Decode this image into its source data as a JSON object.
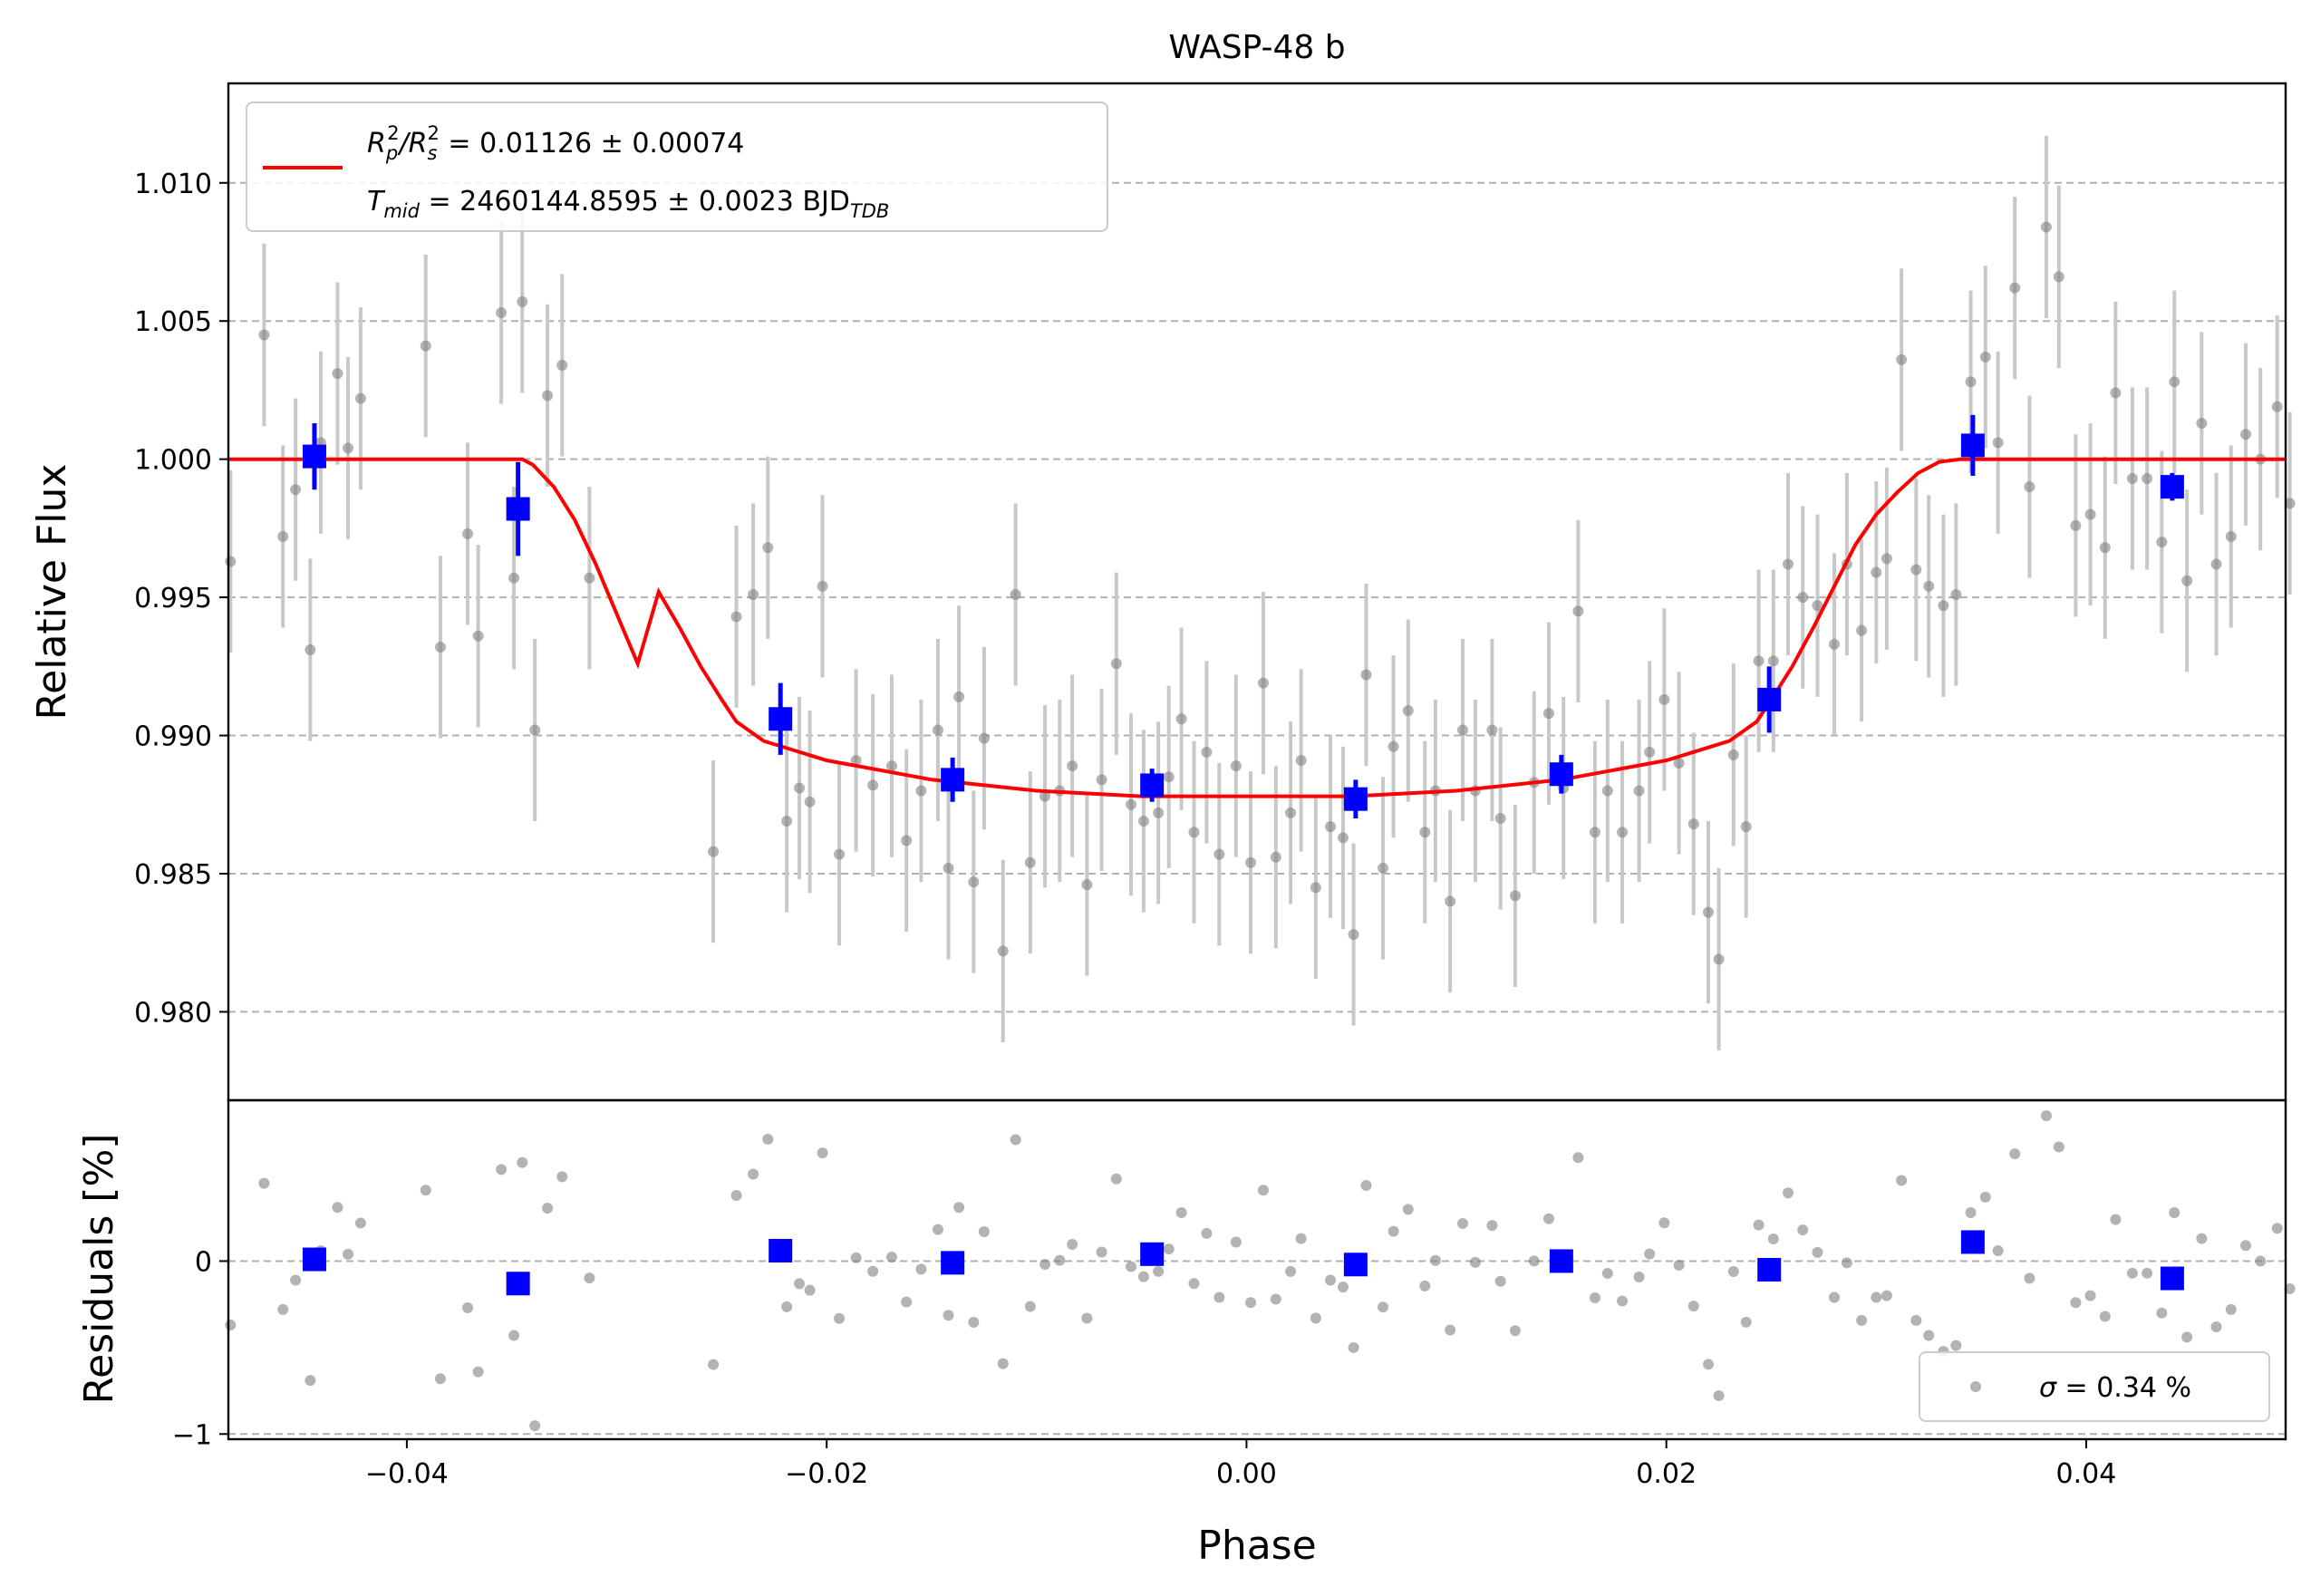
{
  "chart_data": [
    {
      "type": "scatter",
      "title": "WASP-48 b",
      "xlabel": "",
      "ylabel": "Relative Flux",
      "xlim": [
        -0.0485,
        0.0495
      ],
      "ylim": [
        0.9768,
        1.0136
      ],
      "y_ticks": [
        0.98,
        0.985,
        0.99,
        0.995,
        1.0,
        1.005,
        1.01
      ],
      "y_tick_labels": [
        "0.980",
        "0.985",
        "0.990",
        "0.995",
        "1.000",
        "1.005",
        "1.010"
      ],
      "grid": "y-dashed",
      "legend": {
        "placement": "top-left",
        "line1_prefix": "R",
        "line1_sub1": "p",
        "line1_sup1": "2",
        "line1_slash": "/R",
        "line1_sub2": "s",
        "line1_sup2": "2",
        "line1_value": " = 0.01126 ± 0.00074",
        "line2_prefix": "T",
        "line2_sub": "mid",
        "line2_value": " = 2460144.8595 ± 0.0023 BJD",
        "line2_unit_sub": "TDB"
      },
      "colors": {
        "raw": "#808080",
        "errorbar": "#c8c8c8",
        "binned": "#0000ff",
        "model": "#ff0000"
      },
      "series": [
        {
          "role": "raw",
          "x": [
            -0.0484,
            -0.0468,
            -0.0459,
            -0.0453,
            -0.0446,
            -0.0441,
            -0.0433,
            -0.0428,
            -0.0422,
            -0.0391,
            -0.0384,
            -0.0371,
            -0.0366,
            -0.0355,
            -0.0349,
            -0.0345,
            -0.0339,
            -0.0333,
            -0.0326,
            -0.0313,
            -0.0254,
            -0.0243,
            -0.0235,
            -0.0228,
            -0.0219,
            -0.0213,
            -0.0208,
            -0.0202,
            -0.0194,
            -0.0186,
            -0.0178,
            -0.0169,
            -0.0162,
            -0.0155,
            -0.0147,
            -0.0142,
            -0.0137,
            -0.013,
            -0.0125,
            -0.0116,
            -0.011,
            -0.0103,
            -0.0096,
            -0.0089,
            -0.0083,
            -0.0076,
            -0.0069,
            -0.0062,
            -0.0055,
            -0.0049,
            -0.0042,
            -0.0037,
            -0.0031,
            -0.0025,
            -0.0019,
            -0.0013,
            -0.0005,
            0.0002,
            0.0008,
            0.0014,
            0.0021,
            0.0026,
            0.0033,
            0.004,
            0.0046,
            0.0051,
            0.0057,
            0.0065,
            0.007,
            0.0077,
            0.0085,
            0.009,
            0.0097,
            0.0103,
            0.0109,
            0.0117,
            0.0121,
            0.0128,
            0.0137,
            0.0144,
            0.0151,
            0.0158,
            0.0166,
            0.0172,
            0.0179,
            0.0187,
            0.0192,
            0.0199,
            0.0206,
            0.0213,
            0.022,
            0.0225,
            0.0232,
            0.0238,
            0.0244,
            0.0251,
            0.0258,
            0.0265,
            0.0272,
            0.028,
            0.0286,
            0.0293,
            0.03,
            0.0305,
            0.0312,
            0.0319,
            0.0325,
            0.0332,
            0.0338,
            0.0345,
            0.0352,
            0.0358,
            0.0366,
            0.0373,
            0.0381,
            0.0387,
            0.0395,
            0.0402,
            0.0409,
            0.0414,
            0.0422,
            0.0429,
            0.0436,
            0.0442,
            0.0448,
            0.0455,
            0.0462,
            0.0469,
            0.0476,
            0.0483,
            0.0491,
            0.0497
          ],
          "y": [
            0.9963,
            1.0045,
            0.9972,
            0.9989,
            0.9931,
            1.0006,
            1.0031,
            1.0004,
            1.0022,
            1.0041,
            0.9932,
            0.9973,
            0.9936,
            1.0053,
            0.9957,
            1.0057,
            0.9902,
            1.0023,
            1.0034,
            0.9957,
            0.9858,
            0.9943,
            0.9951,
            0.9968,
            0.9869,
            0.9881,
            0.9876,
            0.9954,
            0.9857,
            0.9891,
            0.9882,
            0.9889,
            0.9862,
            0.988,
            0.9902,
            0.9852,
            0.9914,
            0.9847,
            0.9899,
            0.9822,
            0.9951,
            0.9854,
            0.9878,
            0.988,
            0.9889,
            0.9846,
            0.9884,
            0.9926,
            0.9875,
            0.9869,
            0.9872,
            0.9885,
            0.9906,
            0.9865,
            0.9894,
            0.9857,
            0.9889,
            0.9854,
            0.9919,
            0.9856,
            0.9872,
            0.9891,
            0.9845,
            0.9867,
            0.9863,
            0.9828,
            0.9922,
            0.9852,
            0.9896,
            0.9909,
            0.9865,
            0.988,
            0.984,
            0.9902,
            0.988,
            0.9902,
            0.987,
            0.9842,
            0.9883,
            0.9908,
            0.9881,
            0.9945,
            0.9865,
            0.988,
            0.9865,
            0.988,
            0.9894,
            0.9913,
            0.989,
            0.9868,
            0.9836,
            0.9819,
            0.9893,
            0.9867,
            0.9927,
            0.9927,
            0.9962,
            0.995,
            0.9947,
            0.9933,
            0.9962,
            0.9938,
            0.9959,
            0.9964,
            1.0036,
            0.996,
            0.9954,
            0.9947,
            0.9951,
            1.0028,
            1.0037,
            1.0006,
            1.0062,
            0.999,
            1.0084,
            1.0066,
            0.9976,
            0.998,
            0.9968,
            1.0024,
            0.9993,
            0.9993,
            0.997,
            1.0028,
            0.9956,
            1.0013,
            0.9962,
            0.9972,
            1.0009,
            1.0,
            1.0019,
            0.9984
          ],
          "yerr": [
            0.0033,
            0.0033,
            0.0033,
            0.0033,
            0.0033,
            0.0033,
            0.0033,
            0.0033,
            0.0033,
            0.0033,
            0.0033,
            0.0033,
            0.0033,
            0.0033,
            0.0033,
            0.0033,
            0.0033,
            0.0033,
            0.0033,
            0.0033,
            0.0033,
            0.0033,
            0.0033,
            0.0033,
            0.0033,
            0.0033,
            0.0033,
            0.0033,
            0.0033,
            0.0033,
            0.0033,
            0.0033,
            0.0033,
            0.0033,
            0.0033,
            0.0033,
            0.0033,
            0.0033,
            0.0033,
            0.0033,
            0.0033,
            0.0033,
            0.0033,
            0.0033,
            0.0033,
            0.0033,
            0.0033,
            0.0033,
            0.0033,
            0.0033,
            0.0033,
            0.0033,
            0.0033,
            0.0033,
            0.0033,
            0.0033,
            0.0033,
            0.0033,
            0.0033,
            0.0033,
            0.0033,
            0.0033,
            0.0033,
            0.0033,
            0.0033,
            0.0033,
            0.0033,
            0.0033,
            0.0033,
            0.0033,
            0.0033,
            0.0033,
            0.0033,
            0.0033,
            0.0033,
            0.0033,
            0.0033,
            0.0033,
            0.0033,
            0.0033,
            0.0033,
            0.0033,
            0.0033,
            0.0033,
            0.0033,
            0.0033,
            0.0033,
            0.0033,
            0.0033,
            0.0033,
            0.0033,
            0.0033,
            0.0033,
            0.0033,
            0.0033,
            0.0033,
            0.0033,
            0.0033,
            0.0033,
            0.0033,
            0.0033,
            0.0033,
            0.0033,
            0.0033,
            0.0033,
            0.0033,
            0.0033,
            0.0033,
            0.0033,
            0.0033,
            0.0033,
            0.0033,
            0.0033,
            0.0033,
            0.0033,
            0.0033,
            0.0033,
            0.0033,
            0.0033,
            0.0033,
            0.0033,
            0.0033,
            0.0033,
            0.0033,
            0.0033,
            0.0033,
            0.0033,
            0.0033,
            0.0033,
            0.0033,
            0.0033,
            0.0033
          ]
        },
        {
          "role": "binned",
          "x": [
            -0.0444,
            -0.0347,
            -0.0222,
            -0.014,
            -0.0045,
            0.0052,
            0.015,
            0.0249,
            0.0346,
            0.0441
          ],
          "y": [
            1.0001,
            0.9982,
            0.9906,
            0.9884,
            0.9882,
            0.9877,
            0.9886,
            0.9913,
            1.0005,
            0.999
          ],
          "yerr": [
            0.0012,
            0.0017,
            0.0013,
            0.0008,
            0.0006,
            0.0007,
            0.0007,
            0.0012,
            0.0011,
            0.0005
          ]
        },
        {
          "role": "model",
          "x": [
            -0.0485,
            -0.0345,
            -0.034,
            -0.033,
            -0.032,
            -0.031,
            -0.03,
            -0.029,
            -0.028,
            -0.027,
            -0.026,
            -0.025,
            -0.0243,
            -0.023,
            -0.02,
            -0.015,
            -0.01,
            -0.005,
            0.0,
            0.005,
            0.01,
            0.015,
            0.02,
            0.023,
            0.0243,
            0.025,
            0.026,
            0.027,
            0.028,
            0.029,
            0.03,
            0.031,
            0.032,
            0.033,
            0.034,
            0.0345,
            0.0495
          ],
          "y": [
            1.0,
            1.0,
            0.9998,
            0.999,
            0.9978,
            0.9962,
            0.9944,
            0.9926,
            0.9952,
            0.9939,
            0.9925,
            0.9913,
            0.9905,
            0.9898,
            0.9891,
            0.9884,
            0.988,
            0.9878,
            0.9878,
            0.9878,
            0.988,
            0.9884,
            0.9891,
            0.9898,
            0.9905,
            0.9913,
            0.9925,
            0.9939,
            0.9954,
            0.9969,
            0.998,
            0.9988,
            0.9995,
            0.9999,
            1.0,
            1.0,
            1.0
          ]
        }
      ]
    },
    {
      "type": "scatter",
      "title": "",
      "xlabel": "Phase",
      "ylabel": "Residuals [%]",
      "xlim": [
        -0.0485,
        0.0495
      ],
      "ylim": [
        -1.03,
        0.93
      ],
      "x_ticks": [
        -0.04,
        -0.02,
        0.0,
        0.02,
        0.04
      ],
      "x_tick_labels": [
        "−0.04",
        "−0.02",
        "0.00",
        "0.02",
        "0.04"
      ],
      "y_ticks": [
        -1,
        0
      ],
      "y_tick_labels": [
        "−1",
        "0"
      ],
      "grid": "y-dashed",
      "legend": {
        "placement": "lower-right",
        "symbol": "σ",
        "text": " = 0.34 %"
      },
      "series": [
        {
          "role": "raw-residuals"
        },
        {
          "role": "binned-residuals",
          "x": [
            -0.0444,
            -0.0347,
            -0.0222,
            -0.014,
            -0.0045,
            0.0052,
            0.015,
            0.0249,
            0.0346,
            0.0441
          ],
          "y": [
            0.01,
            -0.13,
            0.06,
            -0.01,
            0.04,
            -0.02,
            0.0,
            -0.05,
            0.11,
            -0.1
          ]
        }
      ]
    }
  ]
}
